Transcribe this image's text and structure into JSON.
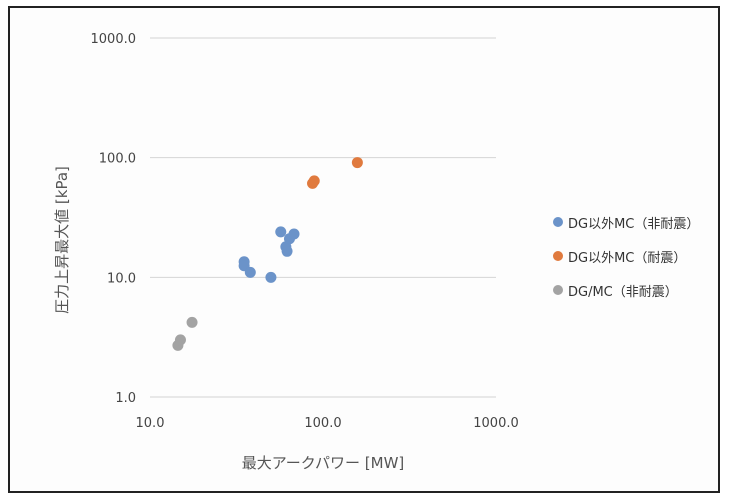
{
  "chart_data": {
    "type": "scatter",
    "title": "",
    "xlabel": "最大アークパワー [MW]",
    "ylabel": "圧力上昇最大値 [kPa]",
    "x_scale": "log",
    "y_scale": "log",
    "xlim": [
      10,
      1000
    ],
    "ylim": [
      1,
      1000
    ],
    "x_ticks": [
      {
        "value": 10,
        "label": "10.0"
      },
      {
        "value": 100,
        "label": "100.0"
      },
      {
        "value": 1000,
        "label": "1000.0"
      }
    ],
    "y_ticks": [
      {
        "value": 1,
        "label": "1.0"
      },
      {
        "value": 10,
        "label": "10.0"
      },
      {
        "value": 100,
        "label": "100.0"
      },
      {
        "value": 1000,
        "label": "1000.0"
      }
    ],
    "grid": "horizontal",
    "legend_position": "right",
    "series": [
      {
        "name": "DG以外MC（非耐震）",
        "color": "#6b93c9",
        "points": [
          [
            35,
            13.5
          ],
          [
            35,
            12.5
          ],
          [
            38,
            11
          ],
          [
            50,
            10
          ],
          [
            57,
            24
          ],
          [
            61,
            18
          ],
          [
            62,
            16.5
          ],
          [
            64,
            21
          ],
          [
            68,
            23
          ]
        ]
      },
      {
        "name": "DG以外MC（耐震）",
        "color": "#e07a3e",
        "points": [
          [
            87,
            61
          ],
          [
            89,
            64
          ],
          [
            158,
            91
          ]
        ]
      },
      {
        "name": "DG/MC（非耐震）",
        "color": "#a3a3a3",
        "points": [
          [
            14.5,
            2.7
          ],
          [
            15,
            3.0
          ],
          [
            17.5,
            4.2
          ]
        ]
      }
    ]
  }
}
